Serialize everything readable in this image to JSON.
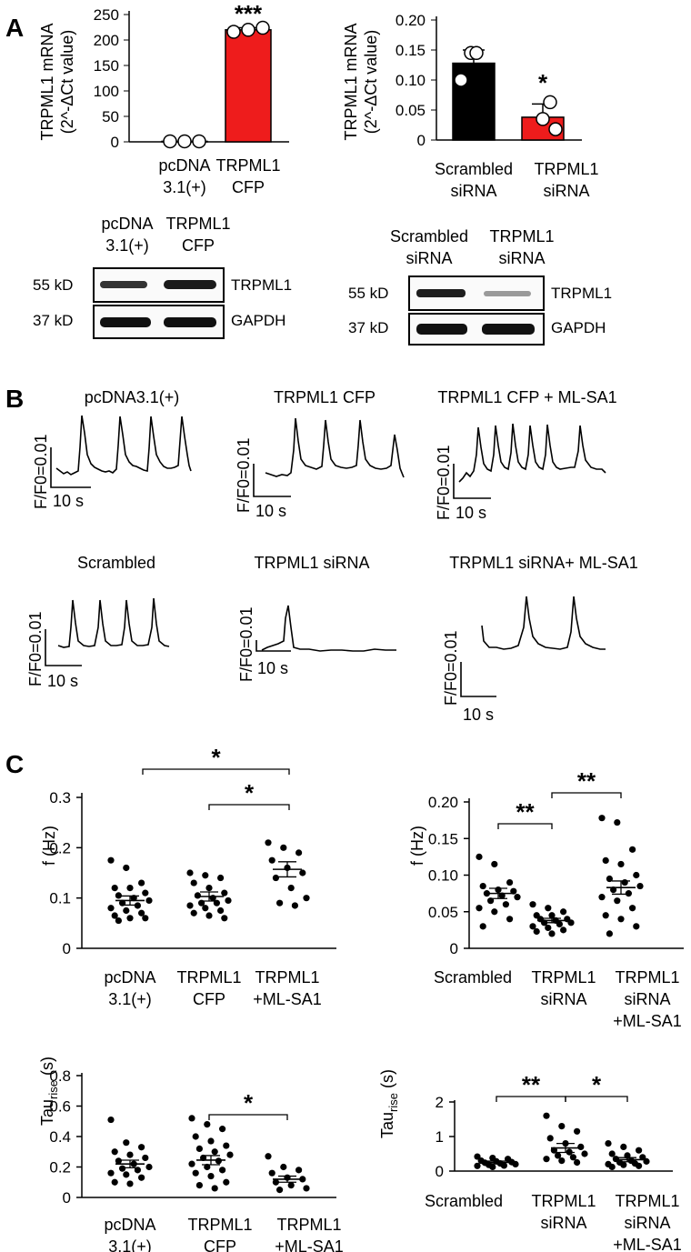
{
  "panels": {
    "a": "A",
    "b": "B",
    "c": "C"
  },
  "colors": {
    "overexpression": "#ee1c1c",
    "control": "#000000"
  },
  "panel_a": {
    "left_chart": {
      "ylabel_line1": "TRPML1 mRNA",
      "ylabel_line2": "(2^-ΔCt value)",
      "ticks": [
        "0",
        "50",
        "100",
        "150",
        "200",
        "250"
      ],
      "sig": "***",
      "cat1_line1": "pcDNA",
      "cat1_line2": "3.1(+)",
      "cat2_line1": "TRPML1",
      "cat2_line2": "CFP"
    },
    "right_chart": {
      "ylabel_line1": "TRPML1 mRNA",
      "ylabel_line2": "(2^-ΔCt value)",
      "ticks": [
        "0",
        "0.05",
        "0.10",
        "0.15",
        "0.20"
      ],
      "sig": "*",
      "cat1_line1": "Scrambled",
      "cat1_line2": "siRNA",
      "cat2_line1": "TRPML1",
      "cat2_line2": "siRNA"
    },
    "blot_left": {
      "col1_line1": "pcDNA",
      "col1_line2": "3.1(+)",
      "col2_line1": "TRPML1",
      "col2_line2": "CFP",
      "row1_kd": "55 kD",
      "row1_name": "TRPML1",
      "row2_kd": "37 kD",
      "row2_name": "GAPDH"
    },
    "blot_right": {
      "col1_line1": "Scrambled",
      "col1_line2": "siRNA",
      "col2_line1": "TRPML1",
      "col2_line2": "siRNA",
      "row1_kd": "55 kD",
      "row1_name": "TRPML1",
      "row2_kd": "37 kD",
      "row2_name": "GAPDH"
    }
  },
  "panel_b": {
    "scale_y": "F/F0=0.01",
    "scale_x": "10 s",
    "titles": [
      "pcDNA3.1(+)",
      "TRPML1 CFP",
      "TRPML1 CFP + ML-SA1",
      "Scrambled",
      "TRPML1 siRNA",
      "TRPML1 siRNA+ ML-SA1"
    ]
  },
  "panel_c": {
    "freq_ylabel": "f (Hz)",
    "tau_ylabel_main": "Tau",
    "tau_ylabel_sub": "rise",
    "tau_ylabel_unit": " (s)",
    "left_cats": [
      [
        "pcDNA",
        "3.1(+)"
      ],
      [
        "TRPML1",
        "CFP"
      ],
      [
        "TRPML1",
        "+ML-SA1"
      ]
    ],
    "right_cats": [
      [
        "Scrambled"
      ],
      [
        "TRPML1",
        "siRNA"
      ],
      [
        "TRPML1",
        "siRNA",
        "+ML-SA1"
      ]
    ],
    "sig_single": "*",
    "sig_double": "**"
  },
  "chart_data": [
    {
      "type": "bar",
      "panel": "A-left",
      "categories": [
        "pcDNA 3.1(+)",
        "TRPML1 CFP"
      ],
      "values": [
        1,
        220
      ],
      "errors": [
        0,
        4
      ],
      "points": [
        [
          1,
          1,
          1
        ],
        [
          216,
          220,
          224
        ]
      ],
      "ylabel": "TRPML1 mRNA (2^-ΔCt value)",
      "ylim": [
        0,
        250
      ],
      "colors": [
        "#000000",
        "#ee1c1c"
      ],
      "significance": [
        "",
        "***"
      ]
    },
    {
      "type": "bar",
      "panel": "A-right",
      "categories": [
        "Scrambled siRNA",
        "TRPML1 siRNA"
      ],
      "values": [
        0.128,
        0.038
      ],
      "errors": [
        0.022,
        0.022
      ],
      "points": [
        [
          0.145,
          0.145,
          0.1
        ],
        [
          0.063,
          0.035,
          0.018
        ]
      ],
      "ylabel": "TRPML1 mRNA (2^-ΔCt value)",
      "ylim": [
        0,
        0.2
      ],
      "colors": [
        "#000000",
        "#ee1c1c"
      ],
      "significance": [
        "",
        "*"
      ]
    },
    {
      "type": "scatter",
      "panel": "C-freq-left",
      "categories": [
        "pcDNA 3.1(+)",
        "TRPML1 CFP",
        "TRPML1 +ML-SA1"
      ],
      "ylabel": "f (Hz)",
      "ylim": [
        0,
        0.3
      ],
      "means": [
        0.095,
        0.103,
        0.157
      ],
      "sems": [
        0.009,
        0.009,
        0.015
      ],
      "points": [
        [
          0.175,
          0.16,
          0.13,
          0.12,
          0.12,
          0.11,
          0.105,
          0.1,
          0.095,
          0.09,
          0.085,
          0.08,
          0.075,
          0.07,
          0.065,
          0.06,
          0.06,
          0.055
        ],
        [
          0.15,
          0.145,
          0.14,
          0.13,
          0.12,
          0.11,
          0.105,
          0.1,
          0.095,
          0.09,
          0.09,
          0.085,
          0.08,
          0.075,
          0.07,
          0.065,
          0.06
        ],
        [
          0.21,
          0.2,
          0.19,
          0.175,
          0.16,
          0.15,
          0.14,
          0.12,
          0.1,
          0.09,
          0.085
        ]
      ],
      "comparisons": [
        {
          "from": "pcDNA 3.1(+)",
          "to": "TRPML1 +ML-SA1",
          "label": "*"
        },
        {
          "from": "TRPML1 CFP",
          "to": "TRPML1 +ML-SA1",
          "label": "*"
        }
      ]
    },
    {
      "type": "scatter",
      "panel": "C-freq-right",
      "categories": [
        "Scrambled",
        "TRPML1 siRNA",
        "TRPML1 siRNA +ML-SA1"
      ],
      "ylabel": "f (Hz)",
      "ylim": [
        0,
        0.2
      ],
      "means": [
        0.075,
        0.038,
        0.083
      ],
      "sems": [
        0.007,
        0.003,
        0.009
      ],
      "points": [
        [
          0.125,
          0.115,
          0.09,
          0.085,
          0.08,
          0.078,
          0.075,
          0.072,
          0.07,
          0.065,
          0.06,
          0.055,
          0.05,
          0.04,
          0.03
        ],
        [
          0.06,
          0.055,
          0.05,
          0.045,
          0.045,
          0.04,
          0.04,
          0.038,
          0.035,
          0.035,
          0.033,
          0.03,
          0.028,
          0.025,
          0.023,
          0.02
        ],
        [
          0.178,
          0.172,
          0.135,
          0.12,
          0.115,
          0.1,
          0.095,
          0.09,
          0.085,
          0.08,
          0.075,
          0.07,
          0.065,
          0.055,
          0.045,
          0.04,
          0.03,
          0.02
        ]
      ],
      "comparisons": [
        {
          "from": "Scrambled",
          "to": "TRPML1 siRNA",
          "label": "**"
        },
        {
          "from": "TRPML1 siRNA",
          "to": "TRPML1 siRNA +ML-SA1",
          "label": "**"
        }
      ]
    },
    {
      "type": "scatter",
      "panel": "C-tau-left",
      "categories": [
        "pcDNA 3.1(+)",
        "TRPML1 CFP",
        "TRPML1 +ML-SA1"
      ],
      "ylabel": "Tau rise (s)",
      "ylim": [
        0,
        0.8
      ],
      "means": [
        0.22,
        0.245,
        0.12
      ],
      "sems": [
        0.025,
        0.03,
        0.02
      ],
      "points": [
        [
          0.51,
          0.36,
          0.33,
          0.3,
          0.28,
          0.26,
          0.24,
          0.22,
          0.2,
          0.19,
          0.18,
          0.16,
          0.15,
          0.13,
          0.1,
          0.09
        ],
        [
          0.52,
          0.48,
          0.45,
          0.4,
          0.37,
          0.34,
          0.32,
          0.3,
          0.28,
          0.26,
          0.24,
          0.22,
          0.2,
          0.18,
          0.16,
          0.14,
          0.1,
          0.08,
          0.06
        ],
        [
          0.27,
          0.2,
          0.18,
          0.16,
          0.13,
          0.12,
          0.1,
          0.08,
          0.06,
          0.05
        ]
      ],
      "comparisons": [
        {
          "from": "TRPML1 CFP",
          "to": "TRPML1 +ML-SA1",
          "label": "*"
        }
      ]
    },
    {
      "type": "scatter",
      "panel": "C-tau-right",
      "categories": [
        "Scrambled",
        "TRPML1 siRNA",
        "TRPML1 siRNA +ML-SA1"
      ],
      "ylabel": "Tau rise (s)",
      "ylim": [
        0,
        2
      ],
      "means": [
        0.25,
        0.67,
        0.33
      ],
      "sems": [
        0.04,
        0.13,
        0.06
      ],
      "points": [
        [
          0.42,
          0.38,
          0.35,
          0.3,
          0.28,
          0.26,
          0.24,
          0.22,
          0.2,
          0.18,
          0.16,
          0.15,
          0.12
        ],
        [
          1.6,
          1.3,
          1.15,
          0.95,
          0.8,
          0.7,
          0.6,
          0.55,
          0.5,
          0.45,
          0.4,
          0.35,
          0.3,
          0.25
        ],
        [
          0.8,
          0.7,
          0.6,
          0.5,
          0.45,
          0.4,
          0.35,
          0.3,
          0.28,
          0.25,
          0.22,
          0.2,
          0.18,
          0.15,
          0.12
        ]
      ],
      "comparisons": [
        {
          "from": "Scrambled",
          "to": "TRPML1 siRNA",
          "label": "**"
        },
        {
          "from": "TRPML1 siRNA",
          "to": "TRPML1 siRNA +ML-SA1",
          "label": "*"
        }
      ]
    }
  ]
}
